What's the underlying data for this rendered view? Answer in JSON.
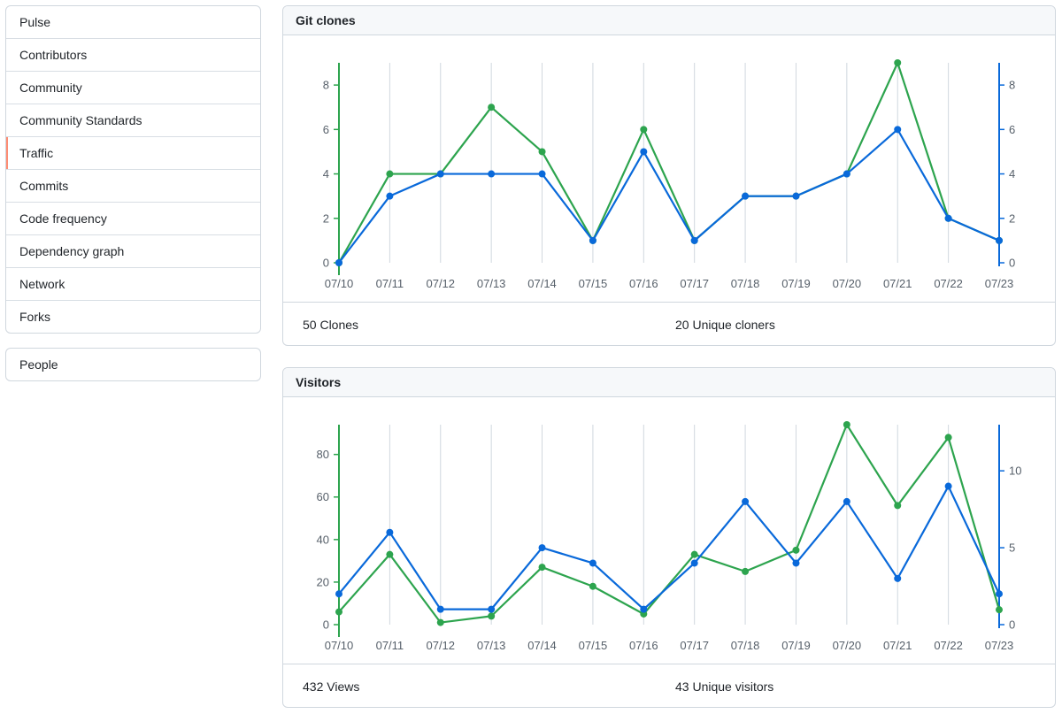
{
  "sidebar": {
    "items": [
      {
        "label": "Pulse"
      },
      {
        "label": "Contributors"
      },
      {
        "label": "Community"
      },
      {
        "label": "Community Standards"
      },
      {
        "label": "Traffic",
        "selected": true
      },
      {
        "label": "Commits"
      },
      {
        "label": "Code frequency"
      },
      {
        "label": "Dependency graph"
      },
      {
        "label": "Network"
      },
      {
        "label": "Forks"
      }
    ],
    "secondary": [
      {
        "label": "People"
      }
    ]
  },
  "colors": {
    "green": "#2da44e",
    "blue": "#0969da",
    "grid": "#d0d7de",
    "accent": "#fd8c73"
  },
  "clones": {
    "title": "Git clones",
    "total_label": "50 Clones",
    "unique_label": "20 Unique cloners"
  },
  "visitors": {
    "title": "Visitors",
    "total_label": "432 Views",
    "unique_label": "43 Unique visitors"
  },
  "chart_data": [
    {
      "type": "line",
      "title": "Git clones",
      "x": [
        "07/10",
        "07/11",
        "07/12",
        "07/13",
        "07/14",
        "07/15",
        "07/16",
        "07/17",
        "07/18",
        "07/19",
        "07/20",
        "07/21",
        "07/22",
        "07/23"
      ],
      "series": [
        {
          "axis": "left",
          "color": "#2da44e",
          "values": [
            0,
            4,
            4,
            7,
            5,
            1,
            6,
            1,
            3,
            3,
            4,
            9,
            2,
            1
          ]
        },
        {
          "axis": "right",
          "color": "#0969da",
          "values": [
            0,
            3,
            4,
            4,
            4,
            1,
            5,
            1,
            3,
            3,
            4,
            6,
            2,
            1
          ]
        }
      ],
      "y_left": {
        "min": 0,
        "max": 9,
        "ticks": [
          0,
          2,
          4,
          6,
          8
        ]
      },
      "y_right": {
        "min": 0,
        "max": 9,
        "ticks": [
          0,
          2,
          4,
          6,
          8
        ]
      },
      "grid": true
    },
    {
      "type": "line",
      "title": "Visitors",
      "x": [
        "07/10",
        "07/11",
        "07/12",
        "07/13",
        "07/14",
        "07/15",
        "07/16",
        "07/17",
        "07/18",
        "07/19",
        "07/20",
        "07/21",
        "07/22",
        "07/23"
      ],
      "series": [
        {
          "axis": "left",
          "color": "#2da44e",
          "values": [
            6,
            33,
            1,
            4,
            27,
            18,
            5,
            33,
            25,
            35,
            94,
            56,
            88,
            7
          ]
        },
        {
          "axis": "right",
          "color": "#0969da",
          "values": [
            2,
            6,
            1,
            1,
            5,
            4,
            1,
            4,
            8,
            4,
            8,
            3,
            9,
            2
          ]
        }
      ],
      "y_left": {
        "min": 0,
        "max": 94,
        "ticks": [
          0,
          20,
          40,
          60,
          80
        ]
      },
      "y_right": {
        "min": 0,
        "max": 13,
        "ticks": [
          0,
          5,
          10
        ]
      },
      "grid": true
    }
  ]
}
